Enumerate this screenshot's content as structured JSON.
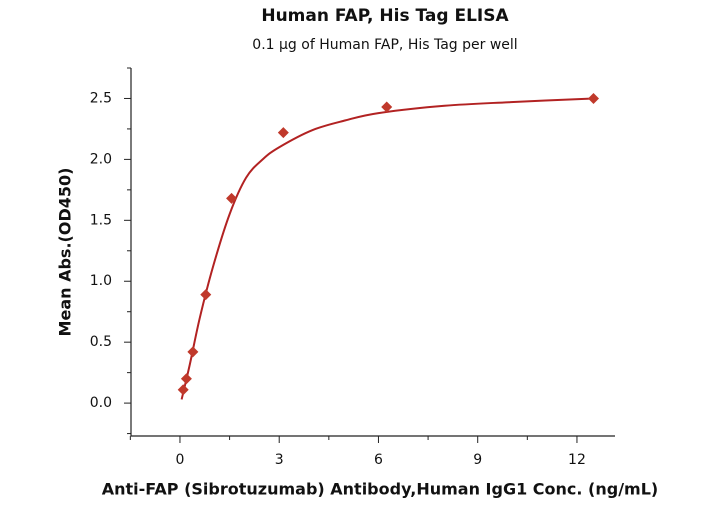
{
  "chart_data": {
    "type": "scatter",
    "title": "Human FAP, His Tag ELISA",
    "subtitle": "0.1 μg of Human FAP, His Tag per well",
    "xlabel": "Anti-FAP (Sibrotuzumab) Antibody,Human IgG1 Conc. (ng/mL)",
    "ylabel": "Mean Abs.(OD450)",
    "x": [
      0.098,
      0.195,
      0.39,
      0.78,
      1.56,
      3.125,
      6.25,
      12.5
    ],
    "values": [
      0.11,
      0.2,
      0.42,
      0.89,
      1.68,
      2.22,
      2.43,
      2.5
    ],
    "color": "#c0392b",
    "fit_curve": {
      "x": [
        0.05,
        0.3,
        0.6,
        1.0,
        1.5,
        2.0,
        2.5,
        3.0,
        4.0,
        5.0,
        6.0,
        8.0,
        10.0,
        12.5
      ],
      "values": [
        0.03,
        0.32,
        0.7,
        1.12,
        1.55,
        1.85,
        2.0,
        2.1,
        2.24,
        2.32,
        2.38,
        2.44,
        2.47,
        2.5
      ],
      "color": "#b22222"
    },
    "xlim": [
      -1.48,
      13.15
    ],
    "ylim": [
      -0.27,
      2.75
    ],
    "xticks": [
      0,
      3,
      6,
      9,
      12
    ],
    "yticks": [
      {
        "value": 0,
        "label": "0.0"
      },
      0.5,
      {
        "value": 1,
        "label": "1.0"
      },
      1.5,
      {
        "value": 2,
        "label": "2.0"
      },
      2.5
    ],
    "minor_xticks": [
      -1.5,
      1.5,
      4.5,
      7.5,
      10.5
    ],
    "minor_yticks": [
      -0.25,
      0.25,
      0.75,
      1.25,
      1.75,
      2.25,
      2.75
    ]
  }
}
